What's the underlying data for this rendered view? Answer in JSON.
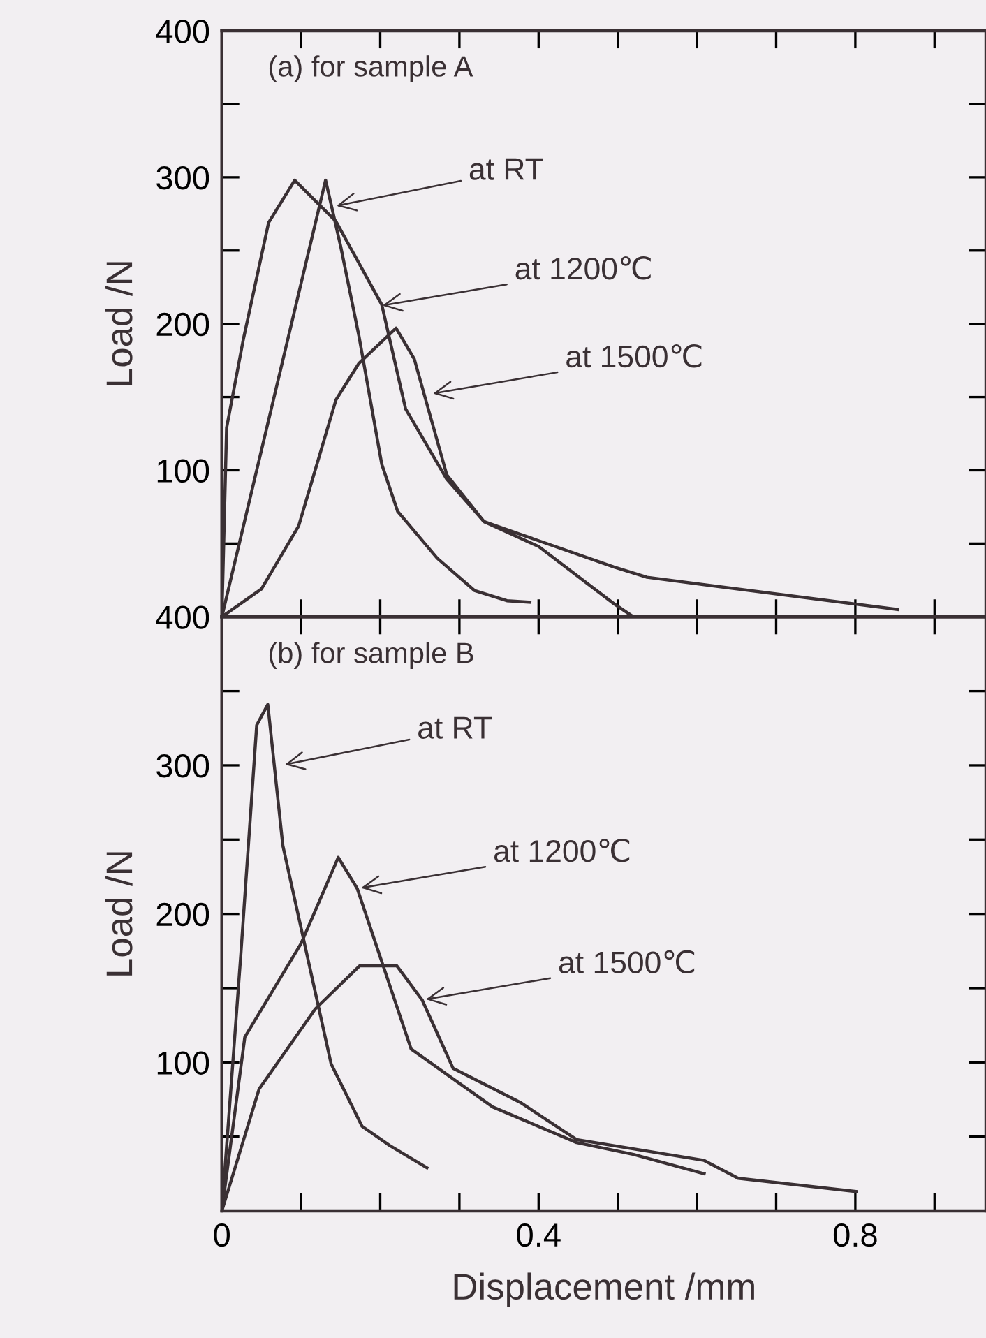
{
  "chart_data": [
    {
      "type": "line",
      "title": "(a) for sample A",
      "ylabel": "Load /N",
      "xlim": [
        0,
        0.965
      ],
      "ylim": [
        0,
        400
      ],
      "xticks": [
        {
          "value": 0,
          "label": null
        },
        {
          "value": 0.1,
          "label": null
        },
        {
          "value": 0.2,
          "label": null
        },
        {
          "value": 0.3,
          "label": null
        },
        {
          "value": 0.4,
          "label": null
        },
        {
          "value": 0.5,
          "label": null
        },
        {
          "value": 0.6,
          "label": null
        },
        {
          "value": 0.7,
          "label": null
        },
        {
          "value": 0.8,
          "label": null
        },
        {
          "value": 0.9,
          "label": null
        }
      ],
      "yticks": [
        {
          "value": 0,
          "label": null
        },
        {
          "value": 50,
          "label": null
        },
        100,
        {
          "value": 150,
          "label": null
        },
        200,
        {
          "value": 250,
          "label": null
        },
        300,
        {
          "value": 350,
          "label": null
        },
        400
      ],
      "tick_labels": "y",
      "grid": false,
      "legend": false,
      "marker": "none",
      "line_style": "solid",
      "series": [
        {
          "color": "#3a3034",
          "x": [
            0,
            0.131,
            0.15,
            0.173,
            0.202,
            0.222,
            0.272,
            0.319,
            0.36,
            0.389
          ],
          "values": [
            0,
            298,
            253,
            192,
            104,
            72,
            40,
            18,
            11,
            10
          ]
        },
        {
          "color": "#3a3034",
          "x": [
            0,
            0.006,
            0.027,
            0.059,
            0.092,
            0.144,
            0.202,
            0.232,
            0.284,
            0.331,
            0.4,
            0.495,
            0.517
          ],
          "values": [
            0,
            129,
            189,
            269,
            298,
            270,
            213,
            142,
            94,
            65,
            48,
            9,
            1
          ]
        },
        {
          "color": "#3a3034",
          "x": [
            0,
            0.05,
            0.097,
            0.144,
            0.173,
            0.22,
            0.243,
            0.284,
            0.331,
            0.495,
            0.537,
            0.853
          ],
          "values": [
            0,
            19,
            62,
            148,
            173,
            197,
            176,
            97,
            65,
            34,
            27,
            5
          ]
        }
      ],
      "annotations": [
        {
          "text": "at RT",
          "x": 0.14,
          "y": 280
        },
        {
          "text": "at 1200℃",
          "x": 0.198,
          "y": 212
        },
        {
          "text": "at 1500℃",
          "x": 0.262,
          "y": 152
        }
      ]
    },
    {
      "type": "line",
      "title": "(b) for sample B",
      "ylabel": "Load /N",
      "xlabel": "Displacement /mm",
      "xlim": [
        0,
        0.965
      ],
      "ylim": [
        0,
        400
      ],
      "xticks": [
        0,
        {
          "value": 0.1,
          "label": null
        },
        {
          "value": 0.2,
          "label": null
        },
        {
          "value": 0.3,
          "label": null
        },
        0.4,
        {
          "value": 0.5,
          "label": null
        },
        {
          "value": 0.6,
          "label": null
        },
        {
          "value": 0.7,
          "label": null
        },
        0.8,
        {
          "value": 0.9,
          "label": null
        }
      ],
      "yticks": [
        {
          "value": 0,
          "label": null
        },
        {
          "value": 50,
          "label": null
        },
        100,
        {
          "value": 150,
          "label": null
        },
        200,
        {
          "value": 250,
          "label": null
        },
        300,
        {
          "value": 350,
          "label": null
        },
        400
      ],
      "grid": false,
      "legend": false,
      "marker": "none",
      "line_style": "solid",
      "series": [
        {
          "color": "#3a3034",
          "x": [
            0,
            0.024,
            0.044,
            0.058,
            0.077,
            0.138,
            0.177,
            0.212,
            0.259
          ],
          "values": [
            0,
            173,
            327,
            341,
            246,
            99,
            57,
            44,
            29
          ]
        },
        {
          "color": "#3a3034",
          "x": [
            0,
            0.029,
            0.1,
            0.147,
            0.171,
            0.239,
            0.342,
            0.448,
            0.52,
            0.609
          ],
          "values": [
            0,
            117,
            180,
            238,
            217,
            109,
            70,
            46,
            38,
            25
          ]
        },
        {
          "color": "#3a3034",
          "x": [
            0,
            0.047,
            0.118,
            0.174,
            0.221,
            0.253,
            0.292,
            0.377,
            0.448,
            0.609,
            0.652,
            0.801
          ],
          "values": [
            0,
            82,
            136,
            165,
            165,
            142,
            96,
            73,
            48,
            34,
            22,
            13
          ]
        }
      ],
      "annotations": [
        {
          "text": "at RT",
          "x": 0.075,
          "y": 300
        },
        {
          "text": "at 1200℃",
          "x": 0.171,
          "y": 217
        },
        {
          "text": "at 1500℃",
          "x": 0.253,
          "y": 142
        }
      ]
    }
  ]
}
